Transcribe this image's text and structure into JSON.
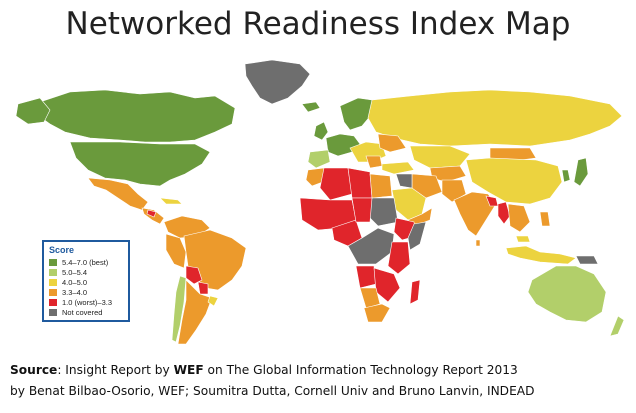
{
  "title": "Networked Readiness Index Map",
  "legend": {
    "title": "Score",
    "items": [
      {
        "label": "5.4–7.0 (best)",
        "color": "#6a9a3c"
      },
      {
        "label": "5.0–5.4",
        "color": "#b2cf6a"
      },
      {
        "label": "4.0–5.0",
        "color": "#ecd33f"
      },
      {
        "label": "3.3–4.0",
        "color": "#ec9a2c"
      },
      {
        "label": "1.0 (worst)–3.3",
        "color": "#e0252b"
      },
      {
        "label": "Not covered",
        "color": "#6e6e6e"
      }
    ]
  },
  "source": {
    "prefix": "Source",
    "line1_a": ": Insight Report by ",
    "org": "WEF",
    "line1_b": " on The Global Information Technology Report 2013",
    "line2": "by Benat Bilbao-Osorio, WEF; Soumitra Dutta, Cornell Univ and Bruno Lanvin, INDEAD"
  }
}
